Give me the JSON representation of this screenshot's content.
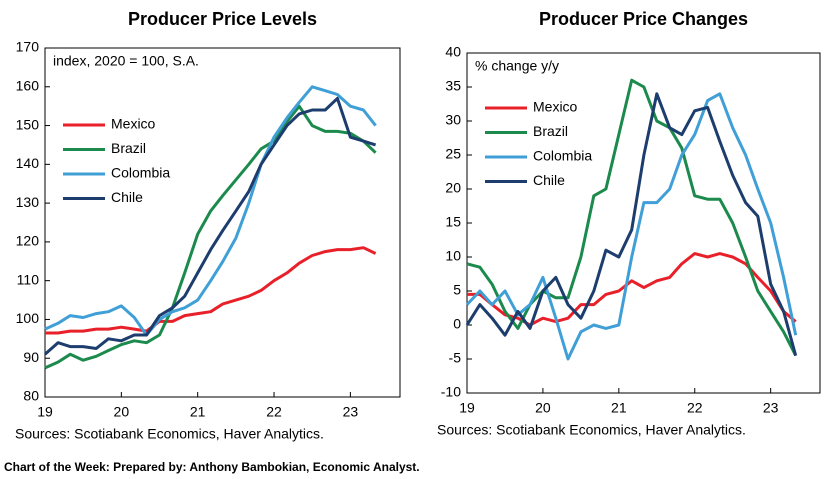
{
  "chart_data": [
    {
      "type": "line",
      "title": "Producer Price Levels",
      "annotation": "index, 2020 = 100, S.A.",
      "source": "Sources: Scotiabank Economics, Haver Analytics.",
      "legend": "center left",
      "grid": false,
      "x": [
        2019,
        2019.17,
        2019.33,
        2019.5,
        2019.67,
        2019.83,
        2020,
        2020.17,
        2020.33,
        2020.5,
        2020.67,
        2020.83,
        2021,
        2021.17,
        2021.33,
        2021.5,
        2021.67,
        2021.83,
        2022,
        2022.17,
        2022.33,
        2022.5,
        2022.67,
        2022.83,
        2023,
        2023.17,
        2023.33
      ],
      "xlim": [
        2019,
        2023.65
      ],
      "xticks": [
        {
          "value": 2019,
          "label": "19"
        },
        {
          "value": 2020,
          "label": "20"
        },
        {
          "value": 2021,
          "label": "21"
        },
        {
          "value": 2022,
          "label": "22"
        },
        {
          "value": 2023,
          "label": "23"
        }
      ],
      "ylim": [
        80,
        170
      ],
      "yticks": [
        80,
        90,
        100,
        110,
        120,
        130,
        140,
        150,
        160,
        170
      ],
      "series": [
        {
          "name": "Mexico",
          "color": "#e8202a",
          "values": [
            96.5,
            96.5,
            97,
            97,
            97.5,
            97.5,
            98,
            97.5,
            97,
            99.5,
            99.5,
            101,
            101.5,
            102,
            104,
            105,
            106,
            107.5,
            110,
            112,
            114.5,
            116.5,
            117.5,
            118,
            118,
            118.5,
            117
          ]
        },
        {
          "name": "Brazil",
          "color": "#1b8a4c",
          "values": [
            87.5,
            89,
            91,
            89.5,
            90.5,
            92,
            93.5,
            94.5,
            94,
            96,
            103,
            112,
            122,
            128,
            132,
            136,
            140,
            144,
            146,
            151,
            155,
            150,
            148.5,
            148.5,
            148,
            146,
            143
          ]
        },
        {
          "name": "Colombia",
          "color": "#3f9fd6",
          "values": [
            97.5,
            99,
            101,
            100.5,
            101.5,
            102,
            103.5,
            100.5,
            96,
            100,
            102,
            103,
            105,
            110,
            115,
            121,
            130,
            140,
            147,
            152,
            156,
            160,
            159,
            158,
            155,
            154,
            150
          ]
        },
        {
          "name": "Chile",
          "color": "#1c3d6e",
          "values": [
            91,
            94,
            93,
            93,
            92.5,
            95,
            94.5,
            96,
            96,
            101,
            103,
            106,
            112,
            118,
            123,
            128,
            133,
            140,
            145,
            150,
            153,
            154,
            154,
            157,
            147,
            146,
            145
          ]
        }
      ]
    },
    {
      "type": "line",
      "title": "Producer Price Changes",
      "annotation": "% change y/y",
      "source": "Sources: Scotiabank Economics, Haver Analytics.",
      "legend": "upper left",
      "grid": false,
      "x": [
        2019,
        2019.17,
        2019.33,
        2019.5,
        2019.67,
        2019.83,
        2020,
        2020.17,
        2020.33,
        2020.5,
        2020.67,
        2020.83,
        2021,
        2021.17,
        2021.33,
        2021.5,
        2021.67,
        2021.83,
        2022,
        2022.17,
        2022.33,
        2022.5,
        2022.67,
        2022.83,
        2023,
        2023.17,
        2023.33
      ],
      "xlim": [
        2019,
        2023.65
      ],
      "xticks": [
        {
          "value": 2019,
          "label": "19"
        },
        {
          "value": 2020,
          "label": "20"
        },
        {
          "value": 2021,
          "label": "21"
        },
        {
          "value": 2022,
          "label": "22"
        },
        {
          "value": 2023,
          "label": "23"
        }
      ],
      "ylim": [
        -10,
        40
      ],
      "yticks": [
        -10,
        -5,
        0,
        5,
        10,
        15,
        20,
        25,
        30,
        35,
        40
      ],
      "series": [
        {
          "name": "Mexico",
          "color": "#e8202a",
          "values": [
            4.5,
            4.5,
            3,
            1.5,
            1,
            0,
            1,
            0.5,
            1,
            3,
            3,
            4.5,
            5,
            6.5,
            5.5,
            6.5,
            7,
            9,
            10.5,
            10,
            10.5,
            10,
            9,
            7,
            5,
            2,
            0.5
          ]
        },
        {
          "name": "Brazil",
          "color": "#1b8a4c",
          "values": [
            9,
            8.5,
            6,
            2,
            -0.5,
            3,
            5,
            4,
            4,
            10,
            19,
            20,
            28,
            36,
            35,
            30,
            29,
            26,
            19,
            18.5,
            18.5,
            15,
            10,
            5,
            2,
            -1,
            -4.5
          ]
        },
        {
          "name": "Colombia",
          "color": "#3f9fd6",
          "values": [
            3,
            5,
            3,
            5,
            1.5,
            3,
            7,
            1,
            -5,
            -1,
            0,
            -0.5,
            0,
            10,
            18,
            18,
            20,
            25,
            28,
            33,
            34,
            29,
            25,
            20,
            15,
            7,
            -1.5
          ]
        },
        {
          "name": "Chile",
          "color": "#1c3d6e",
          "values": [
            0,
            3,
            1,
            -1.5,
            2,
            -0.5,
            5,
            7,
            3,
            1,
            5,
            11,
            10,
            14,
            25,
            34,
            29,
            28,
            31.5,
            32,
            27,
            22,
            18,
            16,
            6,
            2,
            -4.5
          ]
        }
      ]
    }
  ],
  "footer": "Chart of the Week:  Prepared by: Anthony Bambokian, Economic Analyst."
}
